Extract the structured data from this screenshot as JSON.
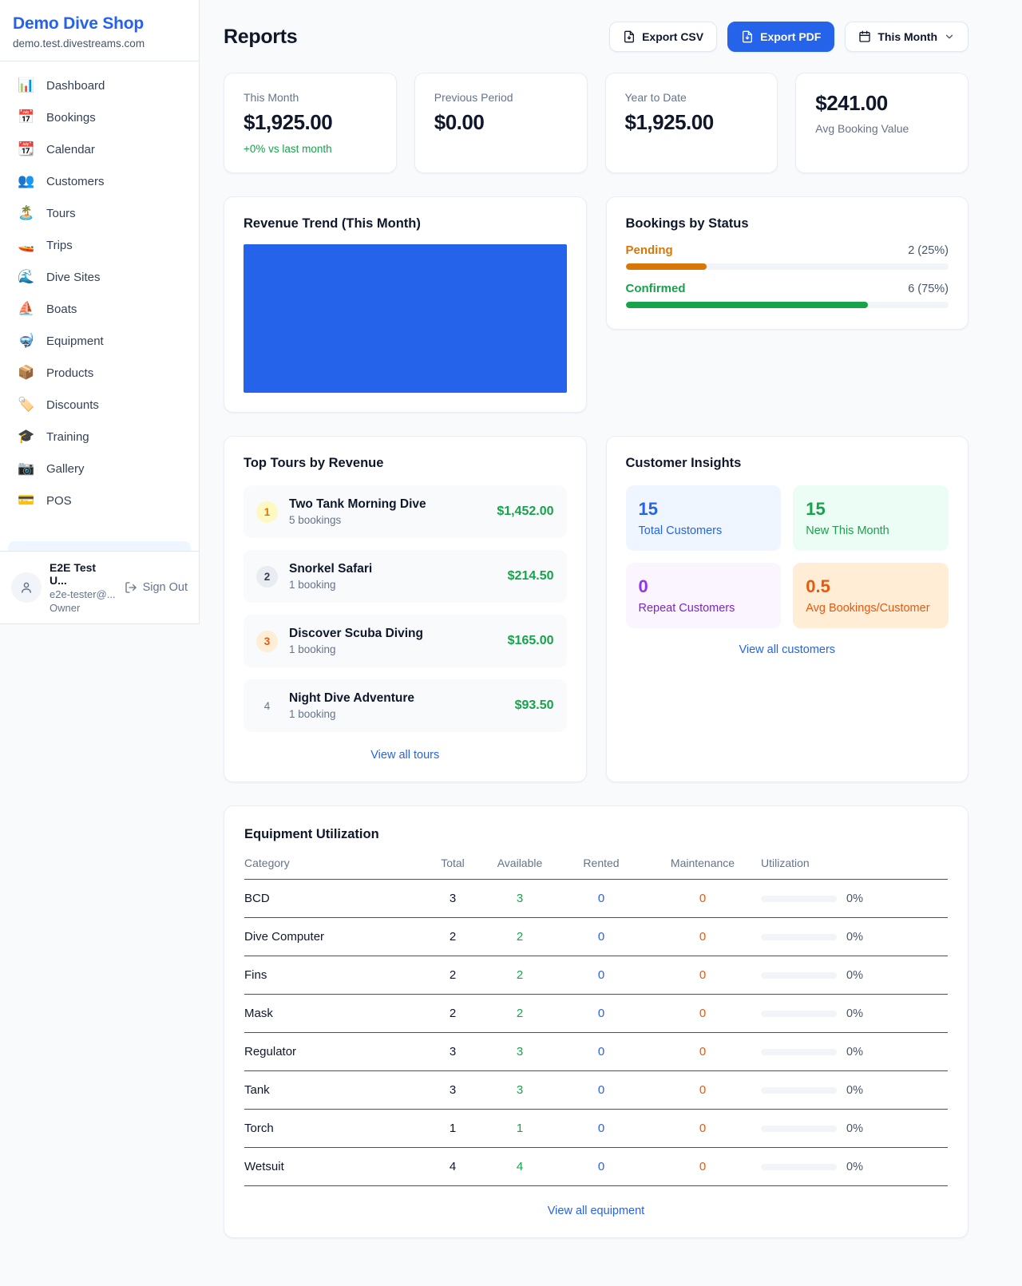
{
  "colors": {
    "accent_blue": "#2563eb",
    "green": "#16a34a",
    "pending_orange": "#d97706",
    "maintenance_orange": "#ea580c",
    "purple": "#9333ea",
    "page_background": "#f8fafc"
  },
  "sidebar": {
    "shop_name": "Demo Dive Shop",
    "domain": "demo.test.divestreams.com",
    "nav": [
      {
        "icon": "📊",
        "label": "Dashboard"
      },
      {
        "icon": "📅",
        "label": "Bookings"
      },
      {
        "icon": "📆",
        "label": "Calendar"
      },
      {
        "icon": "👥",
        "label": "Customers"
      },
      {
        "icon": "🏝️",
        "label": "Tours"
      },
      {
        "icon": "🚤",
        "label": "Trips"
      },
      {
        "icon": "🌊",
        "label": "Dive Sites"
      },
      {
        "icon": "⛵",
        "label": "Boats"
      },
      {
        "icon": "🤿",
        "label": "Equipment"
      },
      {
        "icon": "📦",
        "label": "Products"
      },
      {
        "icon": "🏷️",
        "label": "Discounts"
      },
      {
        "icon": "🎓",
        "label": "Training"
      },
      {
        "icon": "📷",
        "label": "Gallery"
      },
      {
        "icon": "💳",
        "label": "POS"
      }
    ],
    "user": {
      "name": "E2E Test U...",
      "email": "e2e-tester@...",
      "role": "Owner",
      "sign_out_label": "Sign Out"
    }
  },
  "header": {
    "title": "Reports",
    "export_csv_label": "Export CSV",
    "export_pdf_label": "Export PDF",
    "period_label": "This Month"
  },
  "stats": [
    {
      "label": "This Month",
      "value": "$1,925.00",
      "sub": "+0% vs last month"
    },
    {
      "label": "Previous Period",
      "value": "$0.00"
    },
    {
      "label": "Year to Date",
      "value": "$1,925.00"
    },
    {
      "label": "Avg Booking Value",
      "value": "$241.00"
    }
  ],
  "revenue_trend": {
    "title": "Revenue Trend (This Month)",
    "bar_color": "#2563eb",
    "note": "single full-width solid bar, no axis labels"
  },
  "bookings_by_status": {
    "title": "Bookings by Status",
    "rows": [
      {
        "label": "Pending",
        "count_text": "2 (25%)",
        "pct": 25
      },
      {
        "label": "Confirmed",
        "count_text": "6 (75%)",
        "pct": 75
      }
    ]
  },
  "top_tours": {
    "title": "Top Tours by Revenue",
    "items": [
      {
        "rank": "1",
        "name": "Two Tank Morning Dive",
        "bookings": "5 bookings",
        "value": "$1,452.00"
      },
      {
        "rank": "2",
        "name": "Snorkel Safari",
        "bookings": "1 booking",
        "value": "$214.50"
      },
      {
        "rank": "3",
        "name": "Discover Scuba Diving",
        "bookings": "1 booking",
        "value": "$165.00"
      },
      {
        "rank": "4",
        "name": "Night Dive Adventure",
        "bookings": "1 booking",
        "value": "$93.50"
      }
    ],
    "view_all_label": "View all tours"
  },
  "customer_insights": {
    "title": "Customer Insights",
    "tiles": [
      {
        "value": "15",
        "label": "Total Customers"
      },
      {
        "value": "15",
        "label": "New This Month"
      },
      {
        "value": "0",
        "label": "Repeat Customers"
      },
      {
        "value": "0.5",
        "label": "Avg Bookings/Customer"
      }
    ],
    "view_all_label": "View all customers"
  },
  "equipment": {
    "title": "Equipment Utilization",
    "columns": [
      "Category",
      "Total",
      "Available",
      "Rented",
      "Maintenance",
      "Utilization"
    ],
    "rows": [
      {
        "category": "BCD",
        "total": "3",
        "available": "3",
        "rented": "0",
        "maintenance": "0",
        "utilization": "0%",
        "utilization_pct": 0
      },
      {
        "category": "Dive Computer",
        "total": "2",
        "available": "2",
        "rented": "0",
        "maintenance": "0",
        "utilization": "0%",
        "utilization_pct": 0
      },
      {
        "category": "Fins",
        "total": "2",
        "available": "2",
        "rented": "0",
        "maintenance": "0",
        "utilization": "0%",
        "utilization_pct": 0
      },
      {
        "category": "Mask",
        "total": "2",
        "available": "2",
        "rented": "0",
        "maintenance": "0",
        "utilization": "0%",
        "utilization_pct": 0
      },
      {
        "category": "Regulator",
        "total": "3",
        "available": "3",
        "rented": "0",
        "maintenance": "0",
        "utilization": "0%",
        "utilization_pct": 0
      },
      {
        "category": "Tank",
        "total": "3",
        "available": "3",
        "rented": "0",
        "maintenance": "0",
        "utilization": "0%",
        "utilization_pct": 0
      },
      {
        "category": "Torch",
        "total": "1",
        "available": "1",
        "rented": "0",
        "maintenance": "0",
        "utilization": "0%",
        "utilization_pct": 0
      },
      {
        "category": "Wetsuit",
        "total": "4",
        "available": "4",
        "rented": "0",
        "maintenance": "0",
        "utilization": "0%",
        "utilization_pct": 0
      }
    ],
    "view_all_label": "View all equipment"
  }
}
